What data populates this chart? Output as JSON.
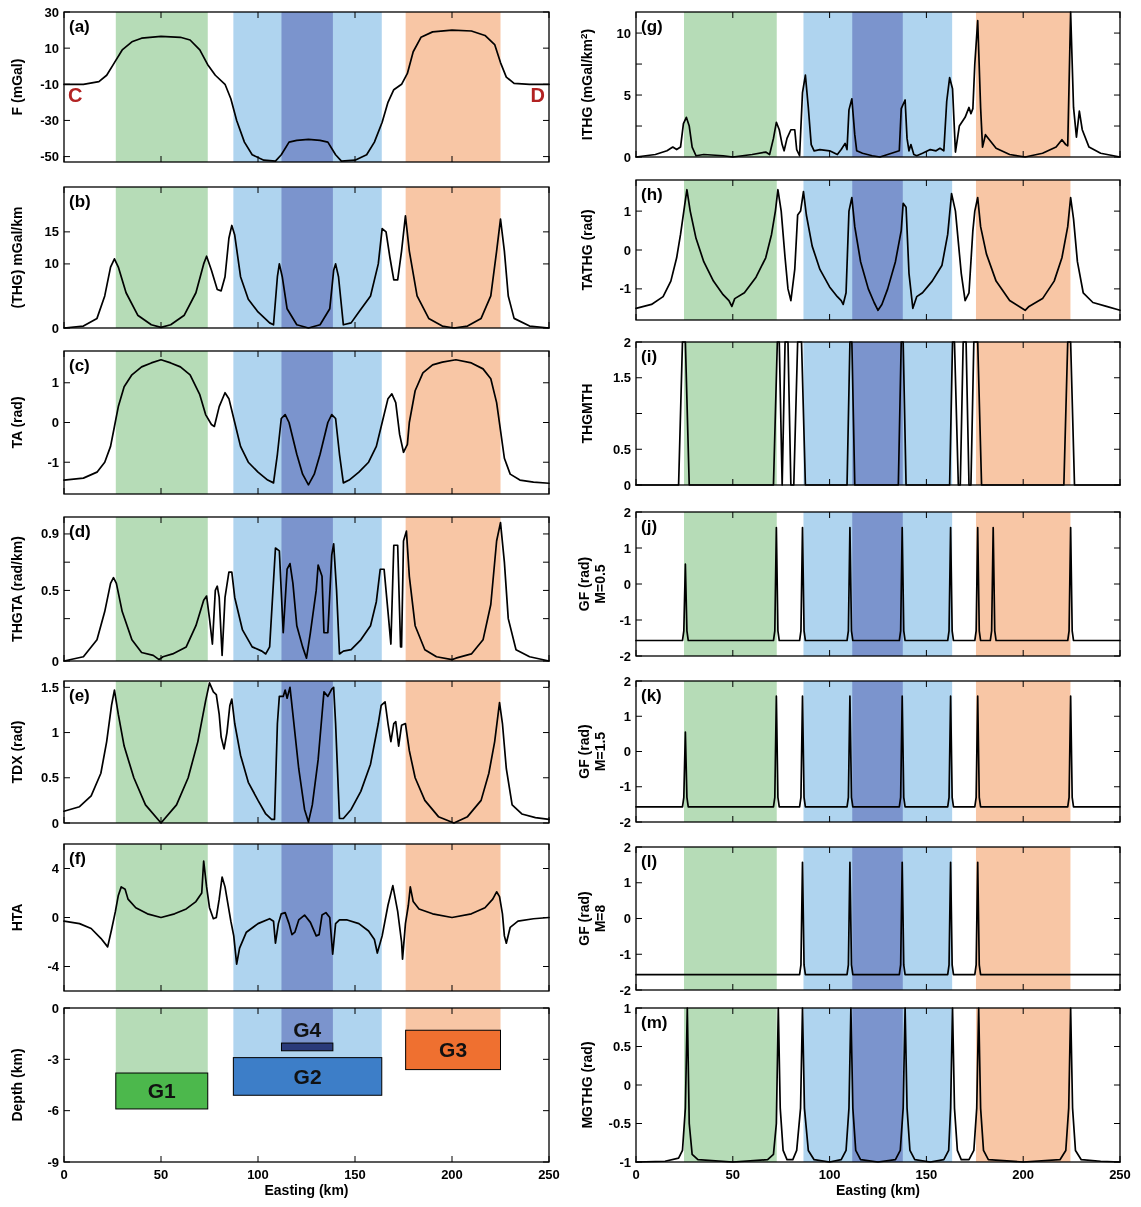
{
  "chart_data": [
    {
      "type": "line",
      "ylabel": "F (mGal)",
      "annotations": [
        "(a)",
        "C",
        "D"
      ],
      "xlim": [
        0,
        250
      ],
      "xticks": [
        0,
        50,
        100,
        150,
        200,
        250
      ],
      "ylim": [
        -53,
        30
      ],
      "yticks": [
        -50,
        -30,
        -10,
        10,
        30
      ],
      "tick_labels": "y",
      "color": "#000000",
      "bands": [
        {
          "axis": "x",
          "from": 26.7,
          "to": 74.1,
          "color": "#b6dcb7"
        },
        {
          "axis": "x",
          "from": 87.3,
          "to": 163.8,
          "color": "#afd4ef"
        },
        {
          "axis": "x",
          "from": 112.1,
          "to": 138.6,
          "color": "#7b94cd"
        },
        {
          "axis": "x",
          "from": 176.1,
          "to": 225,
          "color": "#f8c6a5"
        }
      ],
      "x": [
        0,
        10,
        18,
        22,
        26,
        30,
        35,
        40,
        50,
        60,
        65,
        70,
        74,
        78,
        83,
        86,
        89,
        93,
        97,
        103,
        109,
        112,
        116,
        120,
        126,
        132,
        136,
        140,
        143,
        150,
        156,
        160,
        164,
        167,
        170,
        174,
        177,
        180,
        184,
        190,
        200,
        210,
        217,
        222,
        225,
        228,
        232,
        240,
        250
      ],
      "values": [
        -10,
        -10,
        -8.5,
        -5,
        2,
        9,
        13.5,
        15.5,
        16.5,
        16,
        14.5,
        9,
        1,
        -5,
        -10,
        -18,
        -30,
        -42,
        -49,
        -52,
        -52.5,
        -49,
        -42,
        -41,
        -40.5,
        -41,
        -42,
        -49,
        -52.5,
        -52,
        -49,
        -42,
        -31,
        -20,
        -13,
        -10,
        -4,
        8,
        16,
        19,
        20,
        19.5,
        17,
        12,
        2,
        -6,
        -9.5,
        -10,
        -10
      ]
    },
    {
      "type": "line",
      "ylabel": "(THG) mGal/km",
      "annotations": [
        "(b)"
      ],
      "xlim": [
        0,
        250
      ],
      "xticks": [
        0,
        50,
        100,
        150,
        200,
        250
      ],
      "ylim": [
        0,
        22
      ],
      "yticks": [
        0,
        10,
        15
      ],
      "tick_labels": "y",
      "color": "#000000",
      "bands": [
        {
          "axis": "x",
          "from": 26.7,
          "to": 74.1,
          "color": "#b6dcb7"
        },
        {
          "axis": "x",
          "from": 87.3,
          "to": 163.8,
          "color": "#afd4ef"
        },
        {
          "axis": "x",
          "from": 112.1,
          "to": 138.6,
          "color": "#7b94cd"
        },
        {
          "axis": "x",
          "from": 176.1,
          "to": 225,
          "color": "#f8c6a5"
        }
      ],
      "x": [
        0,
        10,
        17,
        21,
        24,
        26,
        28,
        32,
        38,
        45,
        50,
        55,
        62,
        68,
        72,
        73.5,
        76,
        79,
        81,
        83,
        85,
        86.5,
        88,
        91,
        95,
        100,
        106,
        108,
        110,
        111,
        112.5,
        115,
        120,
        126,
        132,
        137,
        139,
        140,
        141.5,
        144,
        148,
        152,
        158,
        162,
        164,
        166,
        168,
        170,
        172,
        174,
        176,
        178,
        182,
        188,
        195,
        201,
        208,
        215,
        220,
        223,
        225,
        227,
        229,
        232,
        240,
        250
      ],
      "values": [
        0,
        0.3,
        1.5,
        5,
        9.5,
        10.8,
        9.5,
        5.5,
        2,
        0.5,
        0.1,
        0.5,
        2,
        5.5,
        10,
        11.2,
        9,
        6,
        5.8,
        8,
        14,
        16,
        14.5,
        8,
        4.5,
        2.5,
        0.8,
        0.5,
        8,
        10,
        8,
        3,
        0.5,
        0,
        0.5,
        3,
        9,
        10,
        8,
        0.5,
        0.8,
        2.5,
        5,
        10,
        15.5,
        15,
        11,
        7.5,
        7.5,
        12,
        17.5,
        12,
        5,
        1.5,
        0.3,
        0,
        0.3,
        1.5,
        5,
        12,
        17,
        12,
        5,
        1.5,
        0.3,
        0
      ]
    },
    {
      "type": "line",
      "ylabel": "TA (rad)",
      "annotations": [
        "(c)"
      ],
      "xlim": [
        0,
        250
      ],
      "xticks": [
        0,
        50,
        100,
        150,
        200,
        250
      ],
      "ylim": [
        -1.8,
        1.8
      ],
      "yticks": [
        -1,
        0,
        1
      ],
      "tick_labels": "y",
      "color": "#000000",
      "bands": [
        {
          "axis": "x",
          "from": 26.7,
          "to": 74.1,
          "color": "#b6dcb7"
        },
        {
          "axis": "x",
          "from": 87.3,
          "to": 163.8,
          "color": "#afd4ef"
        },
        {
          "axis": "x",
          "from": 112.1,
          "to": 138.6,
          "color": "#7b94cd"
        },
        {
          "axis": "x",
          "from": 176.1,
          "to": 225,
          "color": "#f8c6a5"
        }
      ],
      "x": [
        0,
        10,
        17,
        21,
        24,
        26,
        28,
        31,
        35,
        40,
        45,
        50,
        55,
        60,
        65,
        70,
        73,
        76,
        77.5,
        80,
        83,
        85,
        88,
        91,
        95,
        100,
        105,
        108,
        110,
        112,
        114,
        116,
        120,
        123,
        126,
        129,
        132,
        136,
        138,
        140,
        142,
        144,
        147,
        152,
        157,
        161,
        164,
        167,
        169,
        171,
        173,
        175,
        177,
        178,
        181,
        185,
        190,
        195,
        202,
        210,
        216,
        220,
        223,
        225,
        227,
        230,
        235,
        242,
        250
      ],
      "values": [
        -1.45,
        -1.4,
        -1.25,
        -1.0,
        -0.6,
        -0.1,
        0.4,
        0.9,
        1.2,
        1.4,
        1.5,
        1.58,
        1.5,
        1.4,
        1.2,
        0.7,
        0.2,
        -0.05,
        -0.1,
        0.4,
        0.75,
        0.6,
        0,
        -0.6,
        -1.0,
        -1.25,
        -1.45,
        -1.52,
        -0.8,
        0.1,
        0.2,
        0,
        -0.8,
        -1.3,
        -1.57,
        -1.3,
        -0.8,
        0,
        0.2,
        0.1,
        -0.8,
        -1.52,
        -1.45,
        -1.25,
        -1.0,
        -0.6,
        0,
        0.6,
        0.72,
        0.5,
        -0.3,
        -0.75,
        -0.55,
        0,
        0.8,
        1.25,
        1.45,
        1.52,
        1.58,
        1.5,
        1.35,
        1.1,
        0.5,
        -0.2,
        -0.9,
        -1.3,
        -1.45,
        -1.5,
        -1.53
      ]
    },
    {
      "type": "line",
      "ylabel": "THGTA (rad/km)",
      "annotations": [
        "(d)"
      ],
      "xlim": [
        0,
        250
      ],
      "xticks": [
        0,
        50,
        100,
        150,
        200,
        250
      ],
      "ylim": [
        0,
        1.02
      ],
      "yticks": [
        0,
        {
          "value": 0.3,
          "label": null
        },
        0.5,
        {
          "value": 0.7,
          "label": null
        },
        0.9
      ],
      "tick_labels": "y",
      "color": "#000000",
      "bands": [
        {
          "axis": "x",
          "from": 26.7,
          "to": 74.1,
          "color": "#b6dcb7"
        },
        {
          "axis": "x",
          "from": 87.3,
          "to": 163.8,
          "color": "#afd4ef"
        },
        {
          "axis": "x",
          "from": 112.1,
          "to": 138.6,
          "color": "#7b94cd"
        },
        {
          "axis": "x",
          "from": 176.1,
          "to": 225,
          "color": "#f8c6a5"
        }
      ],
      "x": [
        0,
        10,
        17,
        21,
        24,
        25.5,
        27,
        30,
        35,
        40,
        46,
        49,
        51,
        56,
        63,
        68,
        72,
        73.5,
        75,
        76.5,
        78,
        79,
        80,
        81.5,
        83,
        85,
        86.5,
        88,
        92,
        97,
        102,
        104,
        106,
        109,
        111,
        113,
        115,
        116.5,
        118,
        120,
        123,
        125,
        127,
        130,
        131,
        133,
        134,
        136,
        138,
        139,
        140.5,
        142,
        144,
        148,
        153,
        158,
        161,
        163,
        165,
        167,
        168.5,
        170,
        172,
        173.5,
        174,
        175,
        176.5,
        178,
        181,
        186,
        192,
        200,
        202,
        210,
        216,
        220,
        223,
        225,
        227,
        229,
        233,
        240,
        250
      ],
      "values": [
        0,
        0.03,
        0.15,
        0.35,
        0.55,
        0.59,
        0.55,
        0.35,
        0.15,
        0.06,
        0.04,
        0.01,
        0.03,
        0.05,
        0.1,
        0.25,
        0.43,
        0.46,
        0.3,
        0.12,
        0.5,
        0.53,
        0.45,
        0.04,
        0.45,
        0.63,
        0.63,
        0.45,
        0.22,
        0.1,
        0.07,
        0.05,
        0.1,
        0.8,
        0.78,
        0.2,
        0.65,
        0.69,
        0.55,
        0.25,
        0.1,
        0.02,
        0.2,
        0.5,
        0.68,
        0.6,
        0.2,
        0.2,
        0.75,
        0.83,
        0.5,
        0.05,
        0.07,
        0.08,
        0.15,
        0.25,
        0.42,
        0.65,
        0.65,
        0.35,
        0.12,
        0.82,
        0.82,
        0.1,
        0.1,
        0.85,
        0.92,
        0.6,
        0.25,
        0.08,
        0.03,
        0.01,
        0.02,
        0.05,
        0.15,
        0.4,
        0.85,
        0.98,
        0.7,
        0.3,
        0.08,
        0.03,
        0
      ]
    },
    {
      "type": "line",
      "ylabel": "TDX (rad)",
      "annotations": [
        "(e)"
      ],
      "xlim": [
        0,
        250
      ],
      "xticks": [
        0,
        50,
        100,
        150,
        200,
        250
      ],
      "ylim": [
        0,
        1.57
      ],
      "yticks": [
        0,
        0.5,
        1,
        1.5
      ],
      "tick_labels": "y",
      "color": "#000000",
      "bands": [
        {
          "axis": "x",
          "from": 26.7,
          "to": 74.1,
          "color": "#b6dcb7"
        },
        {
          "axis": "x",
          "from": 87.3,
          "to": 163.8,
          "color": "#afd4ef"
        },
        {
          "axis": "x",
          "from": 112.1,
          "to": 138.6,
          "color": "#7b94cd"
        },
        {
          "axis": "x",
          "from": 176.1,
          "to": 225,
          "color": "#f8c6a5"
        }
      ],
      "x": [
        0,
        8,
        14,
        19,
        22,
        24.5,
        26,
        28,
        31,
        36,
        42,
        50,
        58,
        64,
        69,
        73,
        75,
        77,
        78.5,
        80,
        81,
        82.5,
        84,
        85.5,
        86.5,
        88,
        91,
        95,
        100,
        104,
        107,
        108.5,
        110,
        111,
        113,
        114,
        115,
        116.5,
        118,
        121,
        124,
        126,
        128,
        131,
        133,
        134,
        136,
        138,
        139,
        140,
        142,
        144,
        148,
        153,
        158,
        162,
        163.5,
        165.5,
        167,
        168.5,
        170,
        171,
        172.5,
        174,
        176,
        178,
        181,
        186,
        193,
        201,
        208,
        215,
        219,
        222,
        224.5,
        226,
        228,
        231,
        236,
        243,
        250
      ],
      "values": [
        0.13,
        0.18,
        0.3,
        0.55,
        0.9,
        1.3,
        1.47,
        1.2,
        0.85,
        0.5,
        0.2,
        0,
        0.2,
        0.5,
        0.9,
        1.35,
        1.55,
        1.45,
        1.42,
        1.2,
        0.95,
        0.82,
        1.0,
        1.3,
        1.37,
        1.1,
        0.75,
        0.45,
        0.25,
        0.1,
        0.04,
        0.04,
        1.1,
        1.4,
        1.4,
        1.47,
        1.38,
        1.5,
        1.2,
        0.6,
        0.15,
        0.01,
        0.2,
        0.7,
        1.2,
        1.45,
        1.4,
        1.48,
        1.5,
        1.1,
        0.05,
        0.05,
        0.15,
        0.35,
        0.65,
        1.1,
        1.3,
        1.34,
        1.1,
        0.9,
        1.1,
        1.12,
        0.85,
        1.08,
        1.1,
        0.8,
        0.5,
        0.25,
        0.07,
        0,
        0.07,
        0.25,
        0.55,
        0.9,
        1.33,
        1.1,
        0.6,
        0.2,
        0.1,
        0.06,
        0.04
      ]
    },
    {
      "type": "line",
      "ylabel": "HTA",
      "annotations": [
        "(f)"
      ],
      "xlim": [
        0,
        250
      ],
      "xticks": [
        0,
        50,
        100,
        150,
        200,
        250
      ],
      "ylim": [
        -6,
        6
      ],
      "yticks": [
        -4,
        0,
        4
      ],
      "tick_labels": "y",
      "color": "#000000",
      "bands": [
        {
          "axis": "x",
          "from": 26.7,
          "to": 74.1,
          "color": "#b6dcb7"
        },
        {
          "axis": "x",
          "from": 87.3,
          "to": 163.8,
          "color": "#afd4ef"
        },
        {
          "axis": "x",
          "from": 112.1,
          "to": 138.6,
          "color": "#7b94cd"
        },
        {
          "axis": "x",
          "from": 176.1,
          "to": 225,
          "color": "#f8c6a5"
        }
      ],
      "x": [
        0,
        8,
        14,
        19,
        22.5,
        24.5,
        26.5,
        28,
        29.5,
        31.5,
        33,
        37,
        43,
        50,
        57,
        63,
        68,
        71,
        72,
        73.5,
        75,
        77,
        78.5,
        80,
        81.5,
        83,
        86,
        87.5,
        89,
        90.5,
        94,
        100,
        106,
        108,
        109,
        110.5,
        112,
        114,
        116,
        117.5,
        119,
        121,
        124,
        127,
        130,
        131.5,
        133,
        135,
        137,
        138.5,
        140,
        142,
        146,
        152,
        157,
        160,
        161.5,
        164,
        167,
        169.5,
        172,
        174,
        174.5,
        176,
        177.5,
        178.5,
        180,
        183,
        190,
        200,
        210,
        217,
        221,
        223,
        224.5,
        226,
        227,
        228,
        230,
        234,
        242,
        250
      ],
      "values": [
        -0.3,
        -0.5,
        -0.9,
        -1.7,
        -2.4,
        -1.0,
        0.5,
        1.8,
        2.5,
        2.3,
        1.5,
        0.8,
        0.3,
        0,
        0.3,
        0.7,
        1.3,
        2.0,
        4.6,
        2.5,
        0.8,
        -0.1,
        0,
        1.5,
        3.3,
        2.5,
        -0.3,
        -1.5,
        -3.8,
        -2.5,
        -1.2,
        -0.5,
        -0.1,
        -0.3,
        -2.1,
        -0.5,
        0.3,
        0.4,
        -0.5,
        -1.4,
        -1.2,
        -0.2,
        0.2,
        -0.4,
        -1.5,
        -1.4,
        0.2,
        0.4,
        0,
        -3.0,
        -0.5,
        -0.2,
        -0.2,
        -0.5,
        -1.1,
        -1.8,
        -2.9,
        -1.5,
        1.0,
        2.6,
        0.5,
        -2.0,
        -3.4,
        -0.5,
        1.0,
        2.5,
        1.3,
        0.7,
        0.3,
        0,
        0.3,
        0.8,
        1.5,
        2.1,
        1.7,
        0.3,
        -1.5,
        -2.1,
        -0.8,
        -0.3,
        -0.1,
        0
      ]
    },
    {
      "type": "bar",
      "xlabel": "Easting (km)",
      "ylabel": "Depth (km)",
      "annotations": [
        "G1",
        "G4",
        "G2",
        "G3"
      ],
      "xlim": [
        0,
        250
      ],
      "xticks": [
        0,
        50,
        100,
        150,
        200,
        250
      ],
      "ylim": [
        -9,
        0
      ],
      "yticks": [
        -9,
        -6,
        -3,
        0
      ],
      "bands": [
        {
          "axis": "x",
          "from": 26.7,
          "to": 74.1,
          "color": "#b6dcb7"
        },
        {
          "axis": "x",
          "from": 112.1,
          "to": 138.6,
          "color": "#7b94cd"
        },
        {
          "axis": "x",
          "from": 87.3,
          "to": 163.8,
          "color": "#afd4ef"
        },
        {
          "axis": "x",
          "from": 176.1,
          "to": 225,
          "color": "#f8c6a5"
        }
      ],
      "x": [
        50.4,
        125.35,
        125.55,
        200.55
      ],
      "base": [
        -5.9,
        -2.5,
        -5.1,
        -3.6
      ],
      "values": [
        2.1,
        0.45,
        2.2,
        2.3
      ],
      "colors": [
        "#4cb84c",
        "#2a3a7a",
        "#3d7ec8",
        "#ef7030"
      ]
    },
    {
      "type": "line",
      "ylabel": "ITHG (mGal/km$^{2}$)",
      "annotations": [
        "(g)"
      ],
      "xlim": [
        0,
        250
      ],
      "xticks": [
        0,
        50,
        100,
        150,
        200,
        250
      ],
      "ylim": [
        0,
        11.7
      ],
      "yticks": [
        0,
        {
          "value": 2.5,
          "label": null
        },
        5,
        {
          "value": 7.5,
          "label": null
        },
        10
      ],
      "tick_labels": "y",
      "color": "#000000",
      "bands": [
        {
          "axis": "x",
          "from": 24.8,
          "to": 72.7,
          "color": "#b6dcb7"
        },
        {
          "axis": "x",
          "from": 86.5,
          "to": 163.3,
          "color": "#afd4ef"
        },
        {
          "axis": "x",
          "from": 111.7,
          "to": 137.8,
          "color": "#7b94cd"
        },
        {
          "axis": "x",
          "from": 175.6,
          "to": 224.4,
          "color": "#f8c6a5"
        }
      ],
      "x": [
        0,
        10,
        16,
        19,
        21,
        23,
        24.5,
        26,
        27.5,
        29,
        31,
        35,
        45,
        50,
        60,
        67,
        69,
        71,
        72.5,
        74,
        75.5,
        76.5,
        78,
        80,
        82,
        83,
        84.5,
        86,
        87.5,
        89,
        90.5,
        92,
        95,
        100,
        104,
        106,
        108,
        109,
        110,
        111.5,
        113,
        114,
        117,
        122,
        126,
        130,
        134,
        136,
        137,
        139,
        140,
        141,
        142,
        143.5,
        145,
        148,
        152,
        155,
        157,
        159,
        160.5,
        162,
        163.5,
        165,
        167,
        170,
        172,
        173,
        174,
        175,
        176.5,
        178,
        179,
        180.5,
        182,
        186,
        193,
        201,
        210,
        217,
        220,
        222,
        223,
        224.5,
        226,
        227.5,
        229,
        230.5,
        234,
        240,
        250
      ],
      "values": [
        0,
        0.2,
        0.5,
        0.8,
        0.6,
        0.8,
        2.7,
        3.2,
        2.5,
        0.8,
        0.1,
        0.2,
        0.1,
        0,
        0.2,
        0.4,
        0.2,
        1.5,
        2.8,
        2.2,
        1.0,
        0.5,
        1.5,
        2.2,
        2.2,
        0.6,
        0.1,
        5.2,
        6.6,
        4.0,
        1.0,
        0.5,
        0.6,
        0.5,
        0.2,
        0.6,
        1.1,
        0.6,
        3.8,
        4.7,
        1.8,
        0.5,
        0.3,
        0.1,
        0,
        0.2,
        0.4,
        0.5,
        3.9,
        4.6,
        1.5,
        0.5,
        1.0,
        0.2,
        0.1,
        0.3,
        0.6,
        0.5,
        0.7,
        0.5,
        4.5,
        6.4,
        5.5,
        0.4,
        2.5,
        3.2,
        4.0,
        3.5,
        3.9,
        7.5,
        11,
        4.0,
        0.8,
        1.8,
        1.5,
        0.7,
        0.2,
        0,
        0.3,
        0.8,
        1.4,
        1.0,
        0.9,
        11.7,
        4.0,
        1.6,
        3.7,
        2.2,
        0.8,
        0.3,
        0
      ]
    },
    {
      "type": "line",
      "ylabel": "TATHG (rad)",
      "annotations": [
        "(h)"
      ],
      "xlim": [
        0,
        250
      ],
      "xticks": [
        0,
        50,
        100,
        150,
        200,
        250
      ],
      "ylim": [
        -1.8,
        1.8
      ],
      "yticks": [
        -1,
        0,
        1
      ],
      "tick_labels": "y",
      "color": "#000000",
      "bands": [
        {
          "axis": "x",
          "from": 24.8,
          "to": 72.7,
          "color": "#b6dcb7"
        },
        {
          "axis": "x",
          "from": 86.5,
          "to": 163.3,
          "color": "#afd4ef"
        },
        {
          "axis": "x",
          "from": 111.7,
          "to": 137.8,
          "color": "#7b94cd"
        },
        {
          "axis": "x",
          "from": 175.6,
          "to": 224.4,
          "color": "#f8c6a5"
        }
      ],
      "x": [
        0,
        8,
        14,
        18,
        21,
        23,
        25,
        26.3,
        28,
        31,
        35,
        40,
        45,
        48,
        49.5,
        51,
        56,
        62,
        67,
        70,
        72,
        73.3,
        75,
        77,
        78.5,
        80,
        82,
        83.5,
        85,
        86.5,
        88,
        91,
        95,
        100,
        104,
        106,
        107,
        108.5,
        110,
        111.5,
        113,
        116,
        120,
        123,
        125,
        127,
        130,
        134,
        137,
        138,
        139.5,
        141,
        143,
        145,
        148,
        153,
        158,
        161,
        163,
        165,
        168,
        170,
        172,
        174,
        175,
        176.5,
        178,
        181,
        186,
        193,
        201,
        203,
        210,
        216,
        220,
        223,
        224.5,
        226,
        228,
        231,
        236,
        243,
        250
      ],
      "values": [
        -1.5,
        -1.4,
        -1.2,
        -0.8,
        -0.2,
        0.4,
        1.1,
        1.55,
        1.0,
        0.3,
        -0.3,
        -0.8,
        -1.15,
        -1.3,
        -1.45,
        -1.25,
        -1.1,
        -0.7,
        -0.2,
        0.4,
        1.0,
        1.55,
        1.0,
        -0.2,
        -1.0,
        -1.3,
        -0.5,
        0.9,
        1.0,
        1.5,
        0.9,
        0.1,
        -0.5,
        -0.95,
        -1.2,
        -1.3,
        -1.4,
        -1.1,
        1.0,
        1.35,
        0.6,
        -0.3,
        -1.0,
        -1.35,
        -1.55,
        -1.4,
        -1.0,
        -0.3,
        0.5,
        1.2,
        1.1,
        -0.6,
        -1.5,
        -1.2,
        -1.1,
        -0.8,
        -0.4,
        0.4,
        1.45,
        1.0,
        -0.6,
        -1.3,
        -1.1,
        0.5,
        1.0,
        1.35,
        0.6,
        -0.1,
        -0.8,
        -1.3,
        -1.55,
        -1.45,
        -1.25,
        -0.8,
        -0.2,
        0.6,
        1.35,
        0.8,
        -0.3,
        -1.1,
        -1.35,
        -1.45,
        -1.55
      ]
    },
    {
      "type": "line",
      "ylabel": "THGMTH",
      "annotations": [
        "(i)"
      ],
      "xlim": [
        0,
        250
      ],
      "xticks": [
        0,
        50,
        100,
        150,
        200,
        250
      ],
      "ylim": [
        0,
        2
      ],
      "yticks": [
        0,
        0.5,
        {
          "value": 1,
          "label": null
        },
        1.5,
        2
      ],
      "tick_labels": "y",
      "color": "#000000",
      "bands": [
        {
          "axis": "x",
          "from": 24.8,
          "to": 72.7,
          "color": "#b6dcb7"
        },
        {
          "axis": "x",
          "from": 86.5,
          "to": 163.3,
          "color": "#afd4ef"
        },
        {
          "axis": "x",
          "from": 111.7,
          "to": 137.8,
          "color": "#7b94cd"
        },
        {
          "axis": "x",
          "from": 175.6,
          "to": 224.4,
          "color": "#f8c6a5"
        }
      ],
      "x": [
        0,
        22,
        24,
        25.5,
        27.5,
        71,
        73,
        74,
        75.5,
        77,
        78.5,
        80,
        81.5,
        83.5,
        85.5,
        87.5,
        109,
        110.5,
        111.5,
        113,
        135.5,
        137,
        138,
        139.5,
        162,
        163.5,
        164.5,
        166.5,
        167.5,
        169,
        170.5,
        172,
        173,
        174.5,
        176.5,
        178.5,
        221,
        223,
        224.5,
        226.5,
        250
      ],
      "values": [
        0,
        0,
        2,
        2,
        0,
        0,
        2,
        2,
        0,
        2,
        2,
        0,
        0,
        2,
        2,
        0,
        0,
        2,
        2,
        0,
        0,
        2,
        2,
        0,
        0,
        2,
        2,
        0,
        0,
        2,
        2,
        0,
        0,
        2,
        2,
        0,
        0,
        2,
        2,
        0,
        0
      ]
    },
    {
      "type": "line",
      "ylabel": "GF (rad)\nM=0.5",
      "annotations": [
        "(j)"
      ],
      "xlim": [
        0,
        250
      ],
      "xticks": [
        0,
        50,
        100,
        150,
        200,
        250
      ],
      "ylim": [
        -2,
        2
      ],
      "yticks": [
        -2,
        -1,
        0,
        1,
        2
      ],
      "tick_labels": "y",
      "color": "#000000",
      "bands": [
        {
          "axis": "x",
          "from": 24.8,
          "to": 72.7,
          "color": "#b6dcb7"
        },
        {
          "axis": "x",
          "from": 86.5,
          "to": 163.3,
          "color": "#afd4ef"
        },
        {
          "axis": "x",
          "from": 111.7,
          "to": 137.8,
          "color": "#7b94cd"
        },
        {
          "axis": "x",
          "from": 175.6,
          "to": 224.4,
          "color": "#f8c6a5"
        }
      ],
      "x": [
        0,
        24,
        24.7,
        25.5,
        26.3,
        27,
        71,
        71.7,
        72.5,
        73.3,
        74,
        84.5,
        85.2,
        86,
        86.8,
        87.5,
        109,
        109.7,
        110.5,
        111.3,
        112,
        136,
        136.7,
        137.5,
        138.3,
        139,
        161,
        161.7,
        162.5,
        163.3,
        164,
        175,
        175.7,
        176.5,
        177.3,
        178,
        183,
        183.7,
        184.5,
        185.3,
        186,
        223,
        223.7,
        224.5,
        225.3,
        226,
        250
      ],
      "values": [
        -1.57,
        -1.57,
        -1.3,
        0.55,
        -1.3,
        -1.57,
        -1.57,
        -1.3,
        1.57,
        -1.3,
        -1.57,
        -1.57,
        -1.3,
        1.57,
        -1.3,
        -1.57,
        -1.57,
        -1.3,
        1.57,
        -1.3,
        -1.57,
        -1.57,
        -1.3,
        1.57,
        -1.3,
        -1.57,
        -1.57,
        -1.3,
        1.57,
        -1.3,
        -1.57,
        -1.57,
        -1.3,
        1.57,
        -1.3,
        -1.57,
        -1.57,
        -1.3,
        1.57,
        -1.3,
        -1.57,
        -1.57,
        -1.3,
        1.57,
        -1.3,
        -1.57,
        -1.57
      ]
    },
    {
      "type": "line",
      "ylabel": "GF (rad)\nM=1.5",
      "annotations": [
        "(k)"
      ],
      "xlim": [
        0,
        250
      ],
      "xticks": [
        0,
        50,
        100,
        150,
        200,
        250
      ],
      "ylim": [
        -2,
        2
      ],
      "yticks": [
        -2,
        -1,
        0,
        1,
        2
      ],
      "tick_labels": "y",
      "color": "#000000",
      "bands": [
        {
          "axis": "x",
          "from": 24.8,
          "to": 72.7,
          "color": "#b6dcb7"
        },
        {
          "axis": "x",
          "from": 86.5,
          "to": 163.3,
          "color": "#afd4ef"
        },
        {
          "axis": "x",
          "from": 111.7,
          "to": 137.8,
          "color": "#7b94cd"
        },
        {
          "axis": "x",
          "from": 175.6,
          "to": 224.4,
          "color": "#f8c6a5"
        }
      ],
      "x": [
        0,
        24,
        24.7,
        25.5,
        26.3,
        27,
        71,
        71.7,
        72.5,
        73.3,
        74,
        84.5,
        85.2,
        86,
        86.8,
        87.5,
        109,
        109.7,
        110.5,
        111.3,
        112,
        136,
        136.7,
        137.5,
        138.3,
        139,
        161,
        161.7,
        162.5,
        163.3,
        164,
        175,
        175.7,
        176.5,
        177.3,
        178,
        223,
        223.7,
        224.5,
        225.3,
        226,
        250
      ],
      "values": [
        -1.57,
        -1.57,
        -1.3,
        0.55,
        -1.3,
        -1.57,
        -1.57,
        -1.3,
        1.57,
        -1.3,
        -1.57,
        -1.57,
        -1.3,
        1.57,
        -1.3,
        -1.57,
        -1.57,
        -1.3,
        1.57,
        -1.3,
        -1.57,
        -1.57,
        -1.3,
        1.57,
        -1.3,
        -1.57,
        -1.57,
        -1.3,
        1.57,
        -1.3,
        -1.57,
        -1.57,
        -1.3,
        1.57,
        -1.3,
        -1.57,
        -1.57,
        -1.3,
        1.57,
        -1.3,
        -1.57,
        -1.57
      ]
    },
    {
      "type": "line",
      "ylabel": "GF (rad)\nM=8",
      "annotations": [
        "(l)"
      ],
      "xlim": [
        0,
        250
      ],
      "xticks": [
        0,
        50,
        100,
        150,
        200,
        250
      ],
      "ylim": [
        -2,
        2
      ],
      "yticks": [
        -2,
        -1,
        0,
        1,
        2
      ],
      "tick_labels": "y",
      "color": "#000000",
      "bands": [
        {
          "axis": "x",
          "from": 24.8,
          "to": 72.7,
          "color": "#b6dcb7"
        },
        {
          "axis": "x",
          "from": 86.5,
          "to": 163.3,
          "color": "#afd4ef"
        },
        {
          "axis": "x",
          "from": 111.7,
          "to": 137.8,
          "color": "#7b94cd"
        },
        {
          "axis": "x",
          "from": 175.6,
          "to": 224.4,
          "color": "#f8c6a5"
        }
      ],
      "x": [
        0,
        84.5,
        85.2,
        86,
        86.8,
        87.5,
        109,
        109.7,
        110.5,
        111.3,
        112,
        136,
        136.7,
        137.5,
        138.3,
        139,
        161,
        161.7,
        162.5,
        163.3,
        164,
        175,
        175.7,
        176.5,
        177.3,
        178,
        250
      ],
      "values": [
        -1.57,
        -1.57,
        -1.3,
        1.57,
        -1.3,
        -1.57,
        -1.57,
        -1.3,
        1.57,
        -1.3,
        -1.57,
        -1.57,
        -1.3,
        1.57,
        -1.3,
        -1.57,
        -1.57,
        -1.3,
        1.57,
        -1.3,
        -1.57,
        -1.57,
        -1.3,
        1.57,
        -1.3,
        -1.57,
        -1.57
      ]
    },
    {
      "type": "line",
      "xlabel": "Easting (km)",
      "ylabel": "MGTHG (rad)",
      "annotations": [
        "(m)"
      ],
      "xlim": [
        0,
        250
      ],
      "xticks": [
        0,
        50,
        100,
        150,
        200,
        250
      ],
      "ylim": [
        -1,
        1
      ],
      "yticks": [
        -1,
        -0.5,
        0,
        0.5,
        1
      ],
      "color": "#000000",
      "bands": [
        {
          "axis": "x",
          "from": 24.8,
          "to": 72.7,
          "color": "#b6dcb7"
        },
        {
          "axis": "x",
          "from": 86.5,
          "to": 163.3,
          "color": "#afd4ef"
        },
        {
          "axis": "x",
          "from": 111.7,
          "to": 137.8,
          "color": "#7b94cd"
        },
        {
          "axis": "x",
          "from": 175.6,
          "to": 224.4,
          "color": "#f8c6a5"
        }
      ],
      "x": [
        0,
        15,
        22,
        24,
        25.5,
        26.5,
        27.5,
        29,
        32,
        50,
        68,
        71,
        72.5,
        73.5,
        74.5,
        76,
        78,
        81,
        83,
        85,
        86,
        87,
        89,
        92,
        100,
        106,
        108.5,
        110,
        111,
        112,
        113.5,
        116,
        125,
        134,
        136.5,
        138,
        139,
        140,
        141.5,
        144,
        152,
        159,
        161.5,
        162.5,
        163.5,
        164.5,
        166,
        168,
        172,
        174.5,
        176,
        177,
        178,
        179.5,
        182,
        200,
        219,
        222,
        223.5,
        224.5,
        225.5,
        227,
        230,
        240,
        250
      ],
      "values": [
        -1,
        -0.99,
        -0.95,
        -0.85,
        -0.3,
        1,
        -0.5,
        -0.9,
        -0.97,
        -1,
        -0.97,
        -0.9,
        -0.5,
        1,
        -0.3,
        -0.85,
        -0.97,
        -0.97,
        -0.85,
        -0.3,
        1,
        -0.3,
        -0.85,
        -0.97,
        -1,
        -0.97,
        -0.85,
        -0.3,
        1,
        -0.3,
        -0.85,
        -0.97,
        -1,
        -0.97,
        -0.85,
        -0.3,
        1,
        -0.3,
        -0.85,
        -0.97,
        -1,
        -0.97,
        -0.85,
        -0.3,
        1,
        -0.3,
        -0.85,
        -0.97,
        -0.97,
        -0.85,
        -0.3,
        1,
        -0.3,
        -0.85,
        -0.97,
        -1,
        -0.97,
        -0.85,
        -0.3,
        1,
        -0.3,
        -0.85,
        -0.97,
        -0.99,
        -1
      ]
    }
  ]
}
